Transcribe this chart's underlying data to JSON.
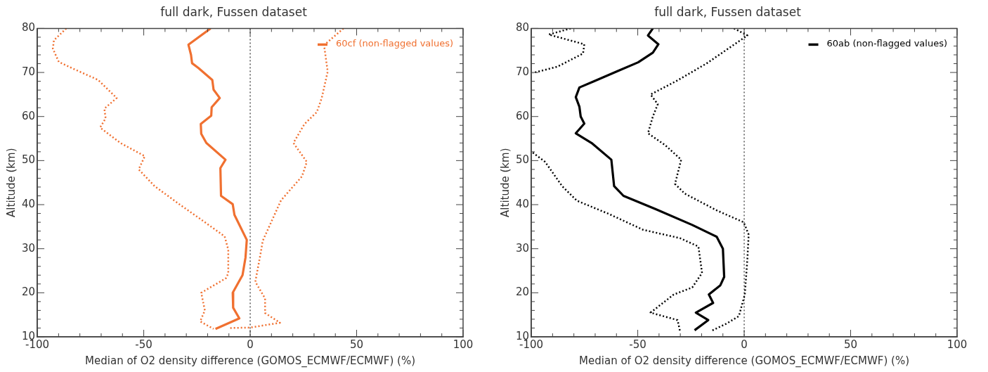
{
  "chart_data": [
    {
      "type": "line",
      "title": "full dark, Fussen dataset",
      "xlabel": "Median of O2 density difference (GOMOS_ECMWF/ECMWF) (%)",
      "ylabel": "Altitude (km)",
      "xlim": [
        -100,
        100
      ],
      "ylim": [
        10,
        80
      ],
      "xticks": [
        -100,
        {
          "value": -90,
          "label": null
        },
        {
          "value": -80,
          "label": null
        },
        {
          "value": -70,
          "label": null
        },
        {
          "value": -60,
          "label": null
        },
        -50,
        {
          "value": -40,
          "label": null
        },
        {
          "value": -30,
          "label": null
        },
        {
          "value": -20,
          "label": null
        },
        {
          "value": -10,
          "label": null
        },
        0,
        {
          "value": 10,
          "label": null
        },
        {
          "value": 20,
          "label": null
        },
        {
          "value": 30,
          "label": null
        },
        {
          "value": 40,
          "label": null
        },
        50,
        {
          "value": 60,
          "label": null
        },
        {
          "value": 70,
          "label": null
        },
        {
          "value": 80,
          "label": null
        },
        {
          "value": 90,
          "label": null
        },
        100
      ],
      "yticks": [
        10,
        {
          "value": 12,
          "label": null
        },
        {
          "value": 14,
          "label": null
        },
        {
          "value": 16,
          "label": null
        },
        {
          "value": 18,
          "label": null
        },
        20,
        {
          "value": 22,
          "label": null
        },
        {
          "value": 24,
          "label": null
        },
        {
          "value": 26,
          "label": null
        },
        {
          "value": 28,
          "label": null
        },
        30,
        {
          "value": 32,
          "label": null
        },
        {
          "value": 34,
          "label": null
        },
        {
          "value": 36,
          "label": null
        },
        {
          "value": 38,
          "label": null
        },
        40,
        {
          "value": 42,
          "label": null
        },
        {
          "value": 44,
          "label": null
        },
        {
          "value": 46,
          "label": null
        },
        {
          "value": 48,
          "label": null
        },
        50,
        {
          "value": 52,
          "label": null
        },
        {
          "value": 54,
          "label": null
        },
        {
          "value": 56,
          "label": null
        },
        {
          "value": 58,
          "label": null
        },
        60,
        {
          "value": 62,
          "label": null
        },
        {
          "value": 64,
          "label": null
        },
        {
          "value": 66,
          "label": null
        },
        {
          "value": 68,
          "label": null
        },
        70,
        {
          "value": 72,
          "label": null
        },
        {
          "value": 74,
          "label": null
        },
        {
          "value": 76,
          "label": null
        },
        {
          "value": 78,
          "label": null
        },
        80
      ],
      "legend": "top right",
      "ref_lines": [
        {
          "axis": "x",
          "value": 0,
          "color": "#000000",
          "line_style": "dotted"
        }
      ],
      "series": [
        {
          "name": "60cf (non-flagged values)",
          "color": "#f07030",
          "line_style": "solid",
          "x": [
            -18.6,
            -29,
            -27.8,
            -27.3,
            -24.3,
            -17.8,
            -17.2,
            -14.3,
            -18.1,
            -18.3,
            -23.2,
            -23,
            -20.6,
            -11.6,
            -14,
            -13.7,
            -8.2,
            -7.4,
            -1.6,
            -2.2,
            -3.6,
            -8.2,
            -8,
            -5.1,
            -16.3
          ],
          "values": [
            80,
            76.3,
            74,
            72.1,
            71,
            68.3,
            66.1,
            64.2,
            62.1,
            60.2,
            58.3,
            56.1,
            54,
            50.2,
            48.3,
            42,
            40.1,
            37.7,
            32,
            28,
            24,
            20,
            16.6,
            14.2,
            11.8
          ]
        },
        {
          "color": "#f07030",
          "line_style": "dotted",
          "x": [
            -86.4,
            -92.2,
            -92.7,
            -89.9,
            -82.9,
            -71.4,
            -62.7,
            -68.5,
            -67.9,
            -70.5,
            -61,
            -49.5,
            -52.4,
            -44.9,
            -33.3,
            -23,
            -12,
            -10.3,
            -10.3,
            -11.4,
            -23,
            -21.3,
            -23.5,
            -17.2
          ],
          "values": [
            80,
            77.3,
            75.4,
            72.4,
            70.8,
            68.3,
            64.2,
            61.8,
            59.6,
            57.5,
            54,
            51,
            48,
            44.2,
            40.1,
            36.6,
            32.8,
            29.8,
            24.4,
            23.3,
            20,
            16,
            13.5,
            11.8
          ]
        },
        {
          "color": "#f07030",
          "line_style": "dotted",
          "x": [
            43.8,
            34.7,
            36.4,
            33.6,
            31.3,
            25.5,
            20.3,
            26.6,
            24.3,
            14.5,
            5.9,
            4.7,
            2.4,
            7,
            7,
            14,
            0,
            -10
          ],
          "values": [
            80,
            76.2,
            70.2,
            64.2,
            61,
            58.3,
            54,
            49.7,
            46.4,
            41,
            31.8,
            28.4,
            22.5,
            18.7,
            15.4,
            13.2,
            12.1,
            12
          ]
        }
      ]
    },
    {
      "type": "line",
      "title": "full dark, Fussen dataset",
      "xlabel": "Median of O2 density difference (GOMOS_ECMWF/ECMWF) (%)",
      "ylabel": "Altitude (km)",
      "xlim": [
        -100,
        100
      ],
      "ylim": [
        10,
        80
      ],
      "xticks": [
        -100,
        {
          "value": -90,
          "label": null
        },
        {
          "value": -80,
          "label": null
        },
        {
          "value": -70,
          "label": null
        },
        {
          "value": -60,
          "label": null
        },
        -50,
        {
          "value": -40,
          "label": null
        },
        {
          "value": -30,
          "label": null
        },
        {
          "value": -20,
          "label": null
        },
        {
          "value": -10,
          "label": null
        },
        0,
        {
          "value": 10,
          "label": null
        },
        {
          "value": 20,
          "label": null
        },
        {
          "value": 30,
          "label": null
        },
        {
          "value": 40,
          "label": null
        },
        50,
        {
          "value": 60,
          "label": null
        },
        {
          "value": 70,
          "label": null
        },
        {
          "value": 80,
          "label": null
        },
        {
          "value": 90,
          "label": null
        },
        100
      ],
      "yticks": [
        10,
        {
          "value": 12,
          "label": null
        },
        {
          "value": 14,
          "label": null
        },
        {
          "value": 16,
          "label": null
        },
        {
          "value": 18,
          "label": null
        },
        20,
        {
          "value": 22,
          "label": null
        },
        {
          "value": 24,
          "label": null
        },
        {
          "value": 26,
          "label": null
        },
        {
          "value": 28,
          "label": null
        },
        30,
        {
          "value": 32,
          "label": null
        },
        {
          "value": 34,
          "label": null
        },
        {
          "value": 36,
          "label": null
        },
        {
          "value": 38,
          "label": null
        },
        40,
        {
          "value": 42,
          "label": null
        },
        {
          "value": 44,
          "label": null
        },
        {
          "value": 46,
          "label": null
        },
        {
          "value": 48,
          "label": null
        },
        50,
        {
          "value": 52,
          "label": null
        },
        {
          "value": 54,
          "label": null
        },
        {
          "value": 56,
          "label": null
        },
        {
          "value": 58,
          "label": null
        },
        60,
        {
          "value": 62,
          "label": null
        },
        {
          "value": 64,
          "label": null
        },
        {
          "value": 66,
          "label": null
        },
        {
          "value": 68,
          "label": null
        },
        70,
        {
          "value": 72,
          "label": null
        },
        {
          "value": 74,
          "label": null
        },
        {
          "value": 76,
          "label": null
        },
        {
          "value": 78,
          "label": null
        },
        80
      ],
      "legend": "top right",
      "ref_lines": [
        {
          "axis": "x",
          "value": 0,
          "color": "#000000",
          "line_style": "dotted"
        }
      ],
      "series": [
        {
          "name": "60ab (non-flagged values)",
          "color": "#000000",
          "line_style": "solid",
          "x": [
            -42.9,
            -45.2,
            -40.3,
            -42.9,
            -49.8,
            -59,
            -70.5,
            -77.4,
            -79.1,
            -77.4,
            -76.8,
            -75.1,
            -79.1,
            -71.7,
            -62.4,
            -61.1,
            -56.7,
            -41.7,
            -24.4,
            -12.9,
            -10,
            -9.4,
            -11.2,
            -16.6,
            -14.6,
            -22.7,
            -16.9,
            -23.3
          ],
          "values": [
            80,
            78.4,
            76.4,
            74.5,
            72.3,
            70.4,
            68,
            66.6,
            64.4,
            62.2,
            60,
            58.4,
            56.2,
            54,
            50.2,
            44.2,
            42,
            39,
            35.4,
            32.7,
            30,
            23.6,
            21.7,
            19.6,
            17.7,
            15.5,
            13.8,
            11.5
          ]
        },
        {
          "color": "#000000",
          "line_style": "dotted",
          "x": [
            -81.5,
            -91.8,
            -75.1,
            -75.7,
            -87.8,
            -99.3,
            null,
            -99.3,
            -93.5,
            -85.5,
            -78.6,
            -63.6,
            -47.5,
            -30.2,
            -21.5,
            -19.8,
            -24.4,
            -33.1,
            -44,
            -31.3,
            -30.2
          ],
          "values": [
            80,
            78.6,
            76.4,
            74.3,
            71.3,
            69.9,
            null,
            51.8,
            49.7,
            44.2,
            40.9,
            37.9,
            34.3,
            32.4,
            30.5,
            24.5,
            21.2,
            19.6,
            15.5,
            13.8,
            11.4
          ]
        },
        {
          "color": "#000000",
          "line_style": "dotted",
          "x": [
            -4.8,
            1.5,
            -17.5,
            -31.3,
            -44,
            -40.6,
            -42.9,
            -45.2,
            -37.1,
            -29.6,
            -32.5,
            -27.9,
            -12.9,
            -0.2,
            2.1,
            1.5,
            0.3,
            -2.5,
            -8.3,
            -15.2
          ],
          "values": [
            80,
            78.4,
            72.1,
            68.2,
            65,
            62.8,
            60,
            56.2,
            53.5,
            50.2,
            44.7,
            42.5,
            38.7,
            36,
            33.2,
            27.7,
            19.6,
            14.7,
            13,
            11.4
          ]
        }
      ]
    }
  ]
}
